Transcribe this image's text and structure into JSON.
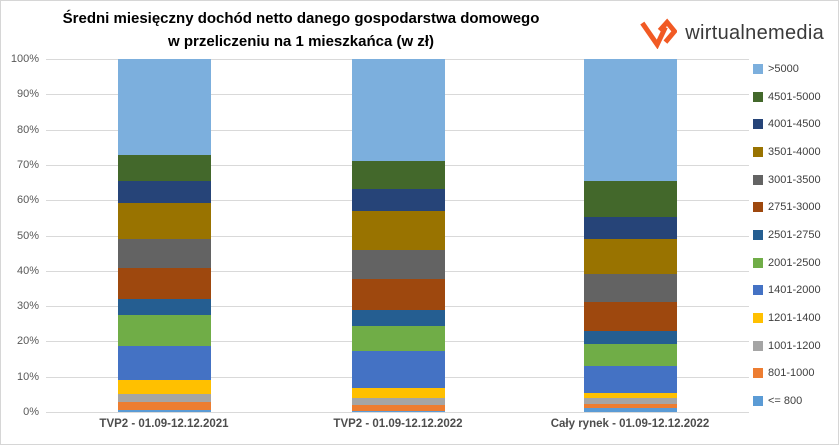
{
  "header": {
    "title": "Średni miesięczny dochód netto danego gospodarstwa domowego w przeliczeniu na 1 mieszkańca (w zł)"
  },
  "logo": {
    "text": "wirtualnemedia",
    "icon": "wm-monogram-icon",
    "icon_color": "#F15A24",
    "text_color": "#3A3A3A"
  },
  "colors": {
    "gridline": "#D9D9D9",
    "axis_label": "#595959",
    "category_label": "#4D4D4D",
    "legend_label": "#404040"
  },
  "chart_data": {
    "type": "bar",
    "stacked": true,
    "units": "percent",
    "title": "Średni miesięczny dochód netto danego gospodarstwa domowego w przeliczeniu na 1 mieszkańca (w zł)",
    "xlabel": "",
    "ylabel": "",
    "ylim": [
      0,
      100
    ],
    "grid": true,
    "legend_position": "right",
    "y_ticks": [
      "0%",
      "10%",
      "20%",
      "30%",
      "40%",
      "50%",
      "60%",
      "70%",
      "80%",
      "90%",
      "100%"
    ],
    "categories": [
      "TVP2 - 01.09-12.12.2021",
      "TVP2 - 01.09-12.12.2022",
      "Cały rynek - 01.09-12.12.2022"
    ],
    "series": [
      {
        "name": "<= 800",
        "color": "#5B9BD5",
        "values": [
          0.5,
          0.4,
          1.2
        ]
      },
      {
        "name": "801-1000",
        "color": "#ED7D31",
        "values": [
          2.4,
          1.5,
          1.0
        ]
      },
      {
        "name": "1001-1200",
        "color": "#A5A5A5",
        "values": [
          2.1,
          2.0,
          1.8
        ]
      },
      {
        "name": "1201-1400",
        "color": "#FFC000",
        "values": [
          4.0,
          2.9,
          1.5
        ]
      },
      {
        "name": "1401-2000",
        "color": "#4472C4",
        "values": [
          9.7,
          10.4,
          7.5
        ]
      },
      {
        "name": "2001-2500",
        "color": "#70AD47",
        "values": [
          8.9,
          7.2,
          6.2
        ]
      },
      {
        "name": "2501-2750",
        "color": "#255E91",
        "values": [
          4.3,
          4.6,
          3.7
        ]
      },
      {
        "name": "2751-3000",
        "color": "#9E480E",
        "values": [
          8.9,
          8.7,
          8.2
        ]
      },
      {
        "name": "3001-3500",
        "color": "#636363",
        "values": [
          8.1,
          8.1,
          8.0
        ]
      },
      {
        "name": "3501-4000",
        "color": "#997300",
        "values": [
          10.2,
          11.3,
          10.0
        ]
      },
      {
        "name": "4001-4500",
        "color": "#264478",
        "values": [
          6.3,
          6.2,
          6.2
        ]
      },
      {
        "name": "4501-5000",
        "color": "#43682B",
        "values": [
          7.3,
          7.9,
          10.1
        ]
      },
      {
        "name": ">5000",
        "color": "#7CAFDD",
        "values": [
          27.3,
          28.8,
          34.6
        ]
      }
    ]
  }
}
